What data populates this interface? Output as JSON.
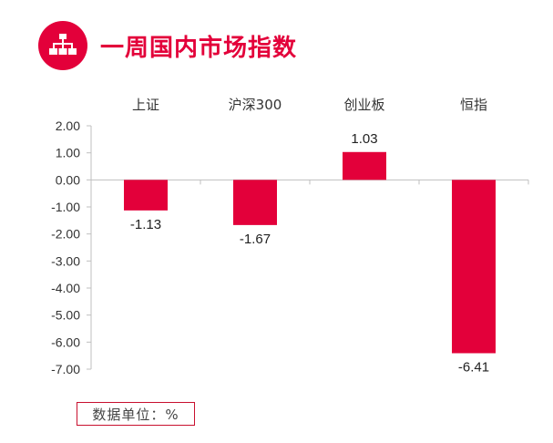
{
  "header": {
    "title": "一周国内市场指数",
    "icon": "hierarchy-icon",
    "accent_color": "#e3003a"
  },
  "unit_label": "数据单位：%",
  "chart_data": {
    "type": "bar",
    "categories": [
      "上证",
      "沪深300",
      "创业板",
      "恒指"
    ],
    "values": [
      -1.13,
      -1.67,
      1.03,
      -6.41
    ],
    "data_labels": [
      "-1.13",
      "-1.67",
      "1.03",
      "-6.41"
    ],
    "title": "",
    "xlabel": "",
    "ylabel": "",
    "ylim": [
      -7,
      2
    ],
    "yticks": [
      "2.00",
      "1.00",
      "0.00",
      "-1.00",
      "-2.00",
      "-3.00",
      "-4.00",
      "-5.00",
      "-6.00",
      "-7.00"
    ],
    "category_labels_position": "top",
    "grid": false,
    "bar_color": "#e3003a"
  }
}
